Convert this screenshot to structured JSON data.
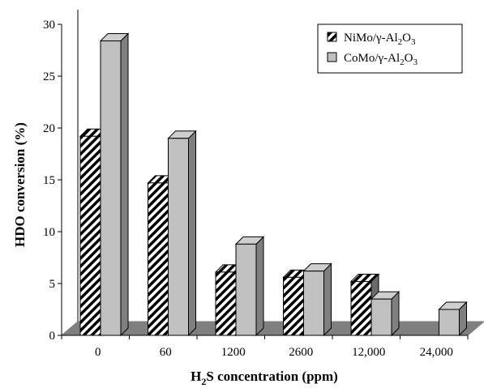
{
  "chart_data": {
    "type": "bar",
    "title": "",
    "xlabel": "H2S concentration (ppm)",
    "xlabel_parts": {
      "pre": "H",
      "sub": "2",
      "post": "S concentration (ppm)"
    },
    "ylabel": "HDO conversion (%)",
    "ylim": [
      0,
      30
    ],
    "yticks": [
      0,
      5,
      10,
      15,
      20,
      25,
      30
    ],
    "categories": [
      "0",
      "60",
      "1200",
      "2600",
      "12,000",
      "24,000"
    ],
    "series": [
      {
        "name": "NiMo/γ-Al2O3",
        "name_parts": {
          "pre": "NiMo/γ-Al",
          "sub1": "2",
          "mid": "O",
          "sub2": "3"
        },
        "pattern": "diagonal-hatch",
        "color": "#ffffff",
        "values": [
          19.2,
          14.7,
          6.1,
          5.6,
          5.2,
          null
        ]
      },
      {
        "name": "CoMo/γ-Al2O3",
        "name_parts": {
          "pre": "CoMo/γ-Al",
          "sub1": "2",
          "mid": "O",
          "sub2": "3"
        },
        "pattern": "solid",
        "color": "#c0c0c0",
        "values": [
          28.4,
          19.0,
          8.8,
          6.2,
          3.5,
          2.5
        ]
      }
    ],
    "floor_color": "#7f7f7f",
    "grid": false,
    "legend_position": "top-right"
  }
}
